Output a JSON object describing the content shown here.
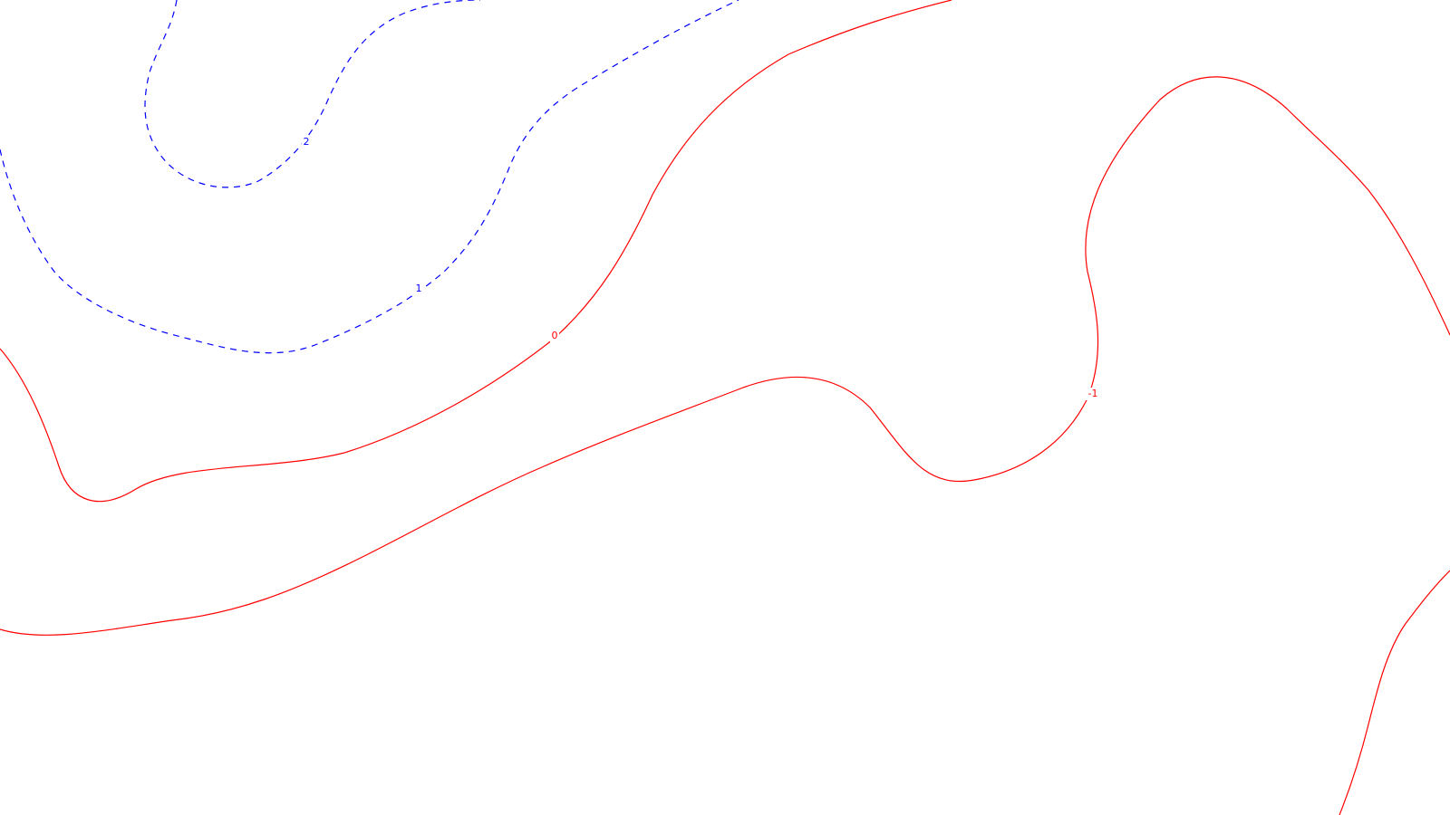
{
  "contour_map": {
    "colors": {
      "positive": "#0000ff",
      "zero_and_negative": "#ff0000",
      "background": "#ffffff"
    },
    "line_styles": {
      "positive": "dashed",
      "zero_and_negative": "solid"
    },
    "contour_levels": [
      2,
      1,
      0,
      -1,
      -1
    ],
    "labels": {
      "level_2": "2",
      "level_1": "1",
      "level_0": "0",
      "level_minus_1": "-1"
    }
  }
}
